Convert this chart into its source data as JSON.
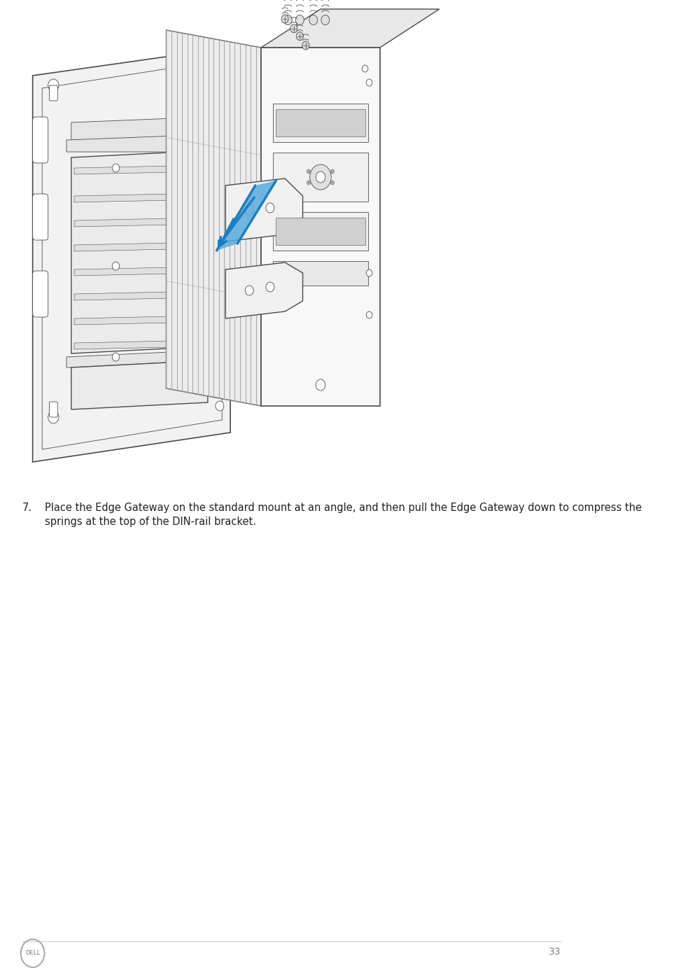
{
  "background_color": "#ffffff",
  "page_width": 9.83,
  "page_height": 13.93,
  "dpi": 100,
  "step_number": "7.",
  "instruction_text": "Place the Edge Gateway on the standard mount at an angle, and then pull the Edge Gateway down to compress the\nsprings at the top of the DIN-rail bracket.",
  "page_number": "33",
  "text_color": "#231f20",
  "page_num_color": "#808080",
  "text_fontsize": 10.5,
  "lw_main": 1.0,
  "lw_thin": 0.6,
  "lw_thick": 1.2,
  "color_line": "#4a4a4a",
  "color_fill_bracket": "#f2f2f2",
  "color_fill_gw_front": "#f8f8f8",
  "color_fill_gw_top": "#e8e8e8",
  "color_fill_gw_right": "#e0e0e0",
  "color_fill_fins": "#eeeeee",
  "color_fill_slot": "#e5e5e5",
  "color_blue_arrow": "#1a7fc1",
  "color_blue_fill": "#5aabdc"
}
